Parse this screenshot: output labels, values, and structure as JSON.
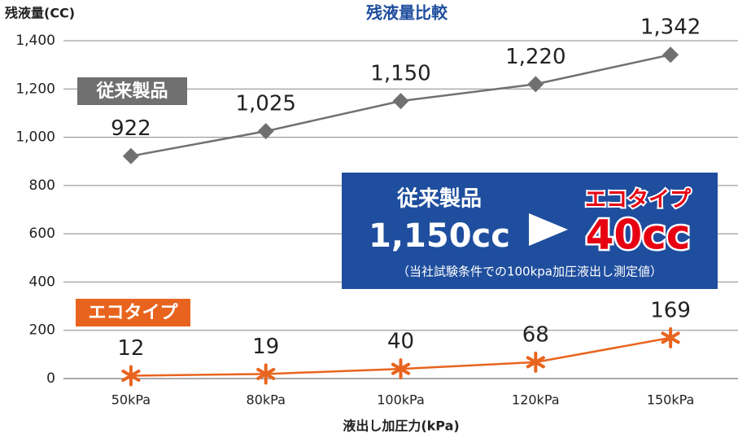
{
  "chart_data": {
    "type": "line",
    "title": "残液量比較",
    "y_label": "残液量(CC)",
    "x_label": "液出し加圧力(kPa)",
    "categories": [
      "50kPa",
      "80kPa",
      "100kPa",
      "120kPa",
      "150kPa"
    ],
    "series": [
      {
        "name": "従来製品",
        "color": "#707070",
        "marker": "diamond",
        "values": [
          922,
          1025,
          1150,
          1220,
          1342
        ],
        "value_labels": [
          "922",
          "1,025",
          "1,150",
          "1,220",
          "1,342"
        ]
      },
      {
        "name": "エコタイプ",
        "color": "#e8641e",
        "marker": "asterisk",
        "values": [
          12,
          19,
          40,
          68,
          169
        ]
      }
    ],
    "ylim": [
      0,
      1400
    ],
    "yticks": [
      0,
      200,
      400,
      600,
      800,
      {
        "value": 1000,
        "label": "1,000"
      },
      {
        "value": 1200,
        "label": "1,200"
      },
      {
        "value": 1400,
        "label": "1,400"
      }
    ],
    "grid": true,
    "annotation": {
      "old_name": "従来製品",
      "old_value": "1,150cc",
      "new_name": "エコタイプ",
      "new_value": "40cc",
      "note": "（当社試験条件での100kpa加圧液出し測定値）"
    }
  }
}
